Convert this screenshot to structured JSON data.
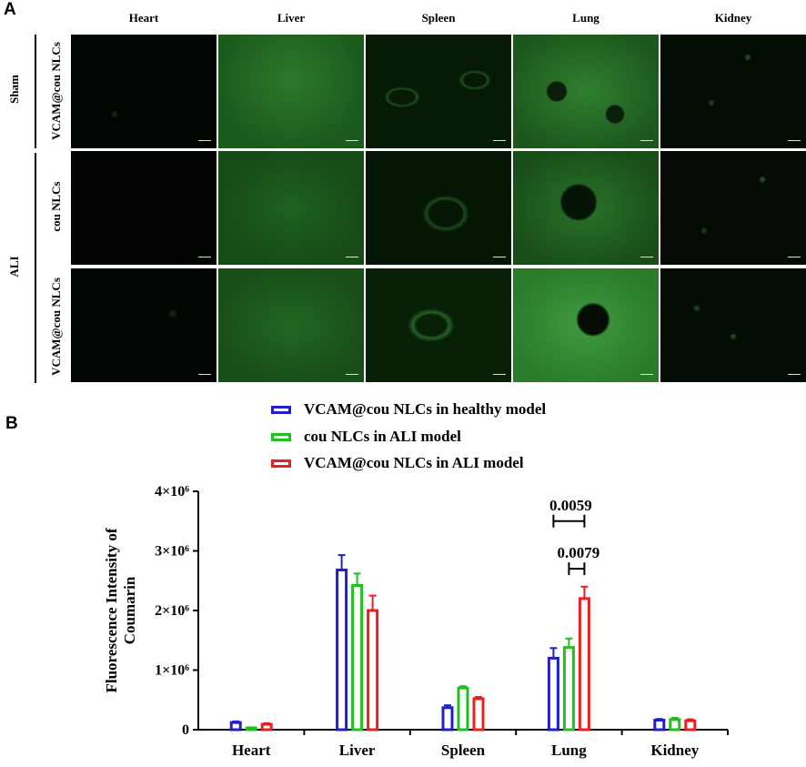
{
  "panel_a": {
    "letter": "A",
    "columns": [
      "Heart",
      "Liver",
      "Spleen",
      "Lung",
      "Kidney"
    ],
    "groups": [
      "Sham",
      "ALI"
    ],
    "rows": [
      "VCAM@cou NLCs",
      "cou NLCs",
      "VCAM@cou NLCs"
    ]
  },
  "panel_b": {
    "letter": "B",
    "legend": [
      "VCAM@cou NLCs in healthy model",
      "cou NLCs in ALI model",
      "VCAM@cou NLCs in ALI model"
    ]
  },
  "colors": {
    "series1": "#2020c8",
    "series2": "#1fc01f",
    "series3": "#e82020",
    "tile_green": "#2e8a2e"
  },
  "chart_data": {
    "type": "bar",
    "ylabel": "Fluorescence Intensity of Coumarin",
    "ylim": [
      0,
      4000000
    ],
    "yticks": [
      {
        "value": 0,
        "label": "0"
      },
      {
        "value": 1000000,
        "label": "1×10⁶"
      },
      {
        "value": 2000000,
        "label": "2×10⁶"
      },
      {
        "value": 3000000,
        "label": "3×10⁶"
      },
      {
        "value": 4000000,
        "label": "4×10⁶"
      }
    ],
    "categories": [
      "Heart",
      "Liver",
      "Spleen",
      "Lung",
      "Kidney"
    ],
    "series": [
      {
        "name": "VCAM@cou NLCs in healthy model",
        "values": [
          120000,
          2680000,
          370000,
          1200000,
          160000
        ],
        "errors": [
          20000,
          250000,
          40000,
          170000,
          20000
        ]
      },
      {
        "name": "cou NLCs in ALI model",
        "values": [
          30000,
          2420000,
          700000,
          1380000,
          170000
        ],
        "errors": [
          10000,
          200000,
          30000,
          150000,
          30000
        ]
      },
      {
        "name": "VCAM@cou NLCs in ALI model",
        "values": [
          90000,
          2000000,
          520000,
          2200000,
          150000
        ],
        "errors": [
          20000,
          250000,
          30000,
          200000,
          25000
        ]
      }
    ],
    "annotations": [
      {
        "text": "0.0059",
        "category": "Lung",
        "from_series": 0,
        "to_series": 2,
        "y": 3500000
      },
      {
        "text": "0.0079",
        "category": "Lung",
        "from_series": 1,
        "to_series": 2,
        "y": 2700000
      }
    ]
  }
}
